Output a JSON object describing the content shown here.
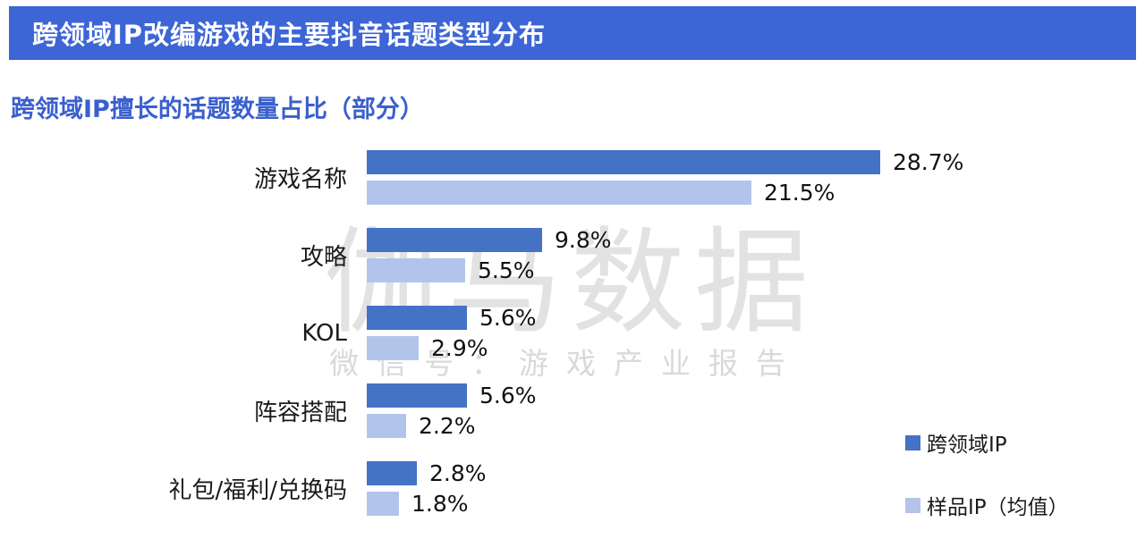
{
  "header": {
    "title": "跨领域IP改编游戏的主要抖音话题类型分布"
  },
  "subtitle": "跨领域IP擅长的话题数量占比（部分）",
  "watermark": {
    "line1": "伽马数据",
    "line2": "微信号：游戏产业报告"
  },
  "legend": [
    {
      "label": "跨领域IP",
      "color": "#4472C4"
    },
    {
      "label": "样品IP（均值）",
      "color": "#B3C4EA"
    }
  ],
  "colors": {
    "header_bg": "#3D65D6",
    "subtitle_text": "#3A5FCE",
    "bar_primary": "#4472C4",
    "bar_secondary": "#B3C4EA"
  },
  "chart_data": {
    "type": "bar",
    "orientation": "horizontal",
    "title": "跨领域IP擅长的话题数量占比（部分）",
    "categories": [
      "游戏名称",
      "攻略",
      "KOL",
      "阵容搭配",
      "礼包/福利/兑换码"
    ],
    "series": [
      {
        "name": "跨领域IP",
        "color": "#4472C4",
        "values": [
          28.7,
          9.8,
          5.6,
          5.6,
          2.8
        ]
      },
      {
        "name": "样品IP（均值）",
        "color": "#B3C4EA",
        "values": [
          21.5,
          5.5,
          2.9,
          2.2,
          1.8
        ]
      }
    ],
    "value_suffix": "%",
    "xlim": [
      0,
      30
    ],
    "grid": false,
    "legend_position": "right-bottom"
  }
}
